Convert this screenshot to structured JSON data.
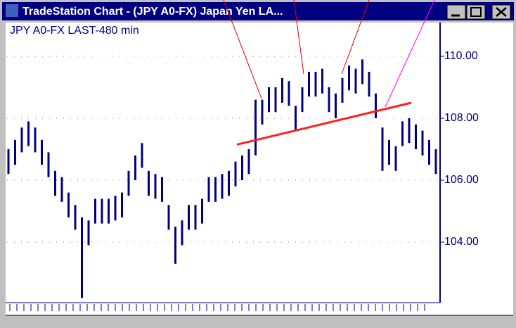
{
  "window": {
    "title": "TradeStation Chart - (JPY A0-FX) Japan Yen LA..."
  },
  "chart_data": {
    "type": "range-bar",
    "title": "JPY A0-FX LAST-480 min",
    "color": "#000080",
    "high": [
      107.0,
      107.3,
      107.7,
      107.9,
      107.7,
      107.3,
      106.9,
      106.3,
      106.1,
      105.6,
      105.2,
      104.8,
      104.7,
      105.4,
      105.4,
      105.4,
      105.5,
      105.6,
      106.3,
      106.8,
      107.2,
      106.3,
      106.2,
      106.1,
      105.2,
      104.5,
      104.7,
      105.2,
      105.2,
      105.4,
      106.1,
      106.1,
      106.2,
      106.3,
      106.6,
      106.8,
      107.0,
      108.6,
      108.6,
      109.0,
      109.0,
      109.3,
      109.2,
      108.4,
      109.0,
      109.5,
      109.5,
      109.6,
      109.0,
      108.8,
      109.3,
      109.7,
      109.6,
      109.9,
      109.5,
      108.8,
      107.7,
      107.3,
      107.1,
      107.9,
      108.0,
      107.8,
      107.6,
      107.3,
      107.0
    ],
    "low": [
      106.2,
      106.5,
      106.9,
      107.1,
      106.9,
      106.5,
      106.1,
      105.5,
      105.3,
      104.8,
      104.4,
      102.2,
      103.9,
      104.6,
      104.6,
      104.6,
      104.7,
      104.8,
      105.5,
      106.0,
      106.4,
      105.5,
      105.4,
      105.3,
      104.4,
      103.3,
      103.9,
      104.4,
      104.4,
      104.6,
      105.3,
      105.3,
      105.4,
      105.5,
      105.8,
      106.0,
      106.2,
      106.8,
      107.8,
      108.2,
      108.2,
      108.5,
      108.4,
      107.6,
      108.2,
      108.7,
      108.7,
      108.8,
      108.2,
      108.0,
      108.5,
      108.9,
      108.8,
      109.1,
      108.7,
      108.0,
      106.3,
      106.5,
      106.3,
      107.1,
      107.2,
      107.0,
      106.8,
      106.5,
      106.2
    ],
    "trendline": {
      "start": 107.15,
      "end": 108.5,
      "color": "#ff2020"
    },
    "ylim": [
      102,
      111
    ],
    "yticks": [
      {
        "value": 104,
        "label": "104.00"
      },
      {
        "value": 106,
        "label": "106.00"
      },
      {
        "value": 108,
        "label": "108.00"
      },
      {
        "value": 110,
        "label": "110.00"
      }
    ],
    "grid": true
  }
}
